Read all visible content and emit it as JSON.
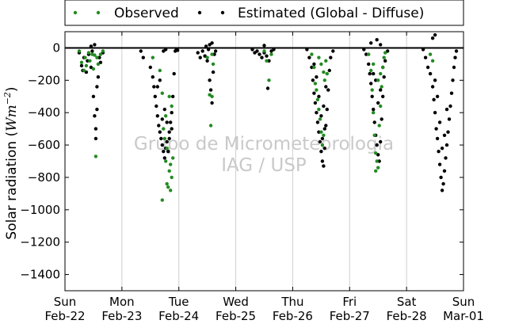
{
  "chart_data": {
    "type": "scatter",
    "ylabel_main": "Solar radiation (",
    "ylabel_unit_italic": "Wm",
    "ylabel_exponent": "−2",
    "ylabel_close": ")",
    "ylim": [
      -1500,
      100
    ],
    "yticks": [
      0,
      -200,
      -400,
      -600,
      -800,
      -1000,
      -1200,
      -1400
    ],
    "yticklabels": [
      "0",
      "−200",
      "−400",
      "−600",
      "−800",
      "−1000",
      "−1200",
      "−1400"
    ],
    "x_days": [
      "2015-02-22",
      "2015-02-23",
      "2015-02-24",
      "2015-02-25",
      "2015-02-26",
      "2015-02-27",
      "2015-02-28",
      "2015-03-01"
    ],
    "xtick_line1": [
      "Sun",
      "Mon",
      "Tue",
      "Wed",
      "Thu",
      "Fri",
      "Sat",
      "Sun"
    ],
    "xtick_line2": [
      "Feb-22",
      "Feb-23",
      "Feb-24",
      "Feb-25",
      "Feb-26",
      "Feb-27",
      "Feb-28",
      "Mar-01"
    ],
    "vertical_grid": true,
    "legend_position": "top-center, outside plot",
    "watermark": [
      "Grupo de Micrometeorologia",
      "IAG / USP"
    ],
    "series": [
      {
        "name": "Observed",
        "color": "#228b22",
        "points": [
          [
            "2015-02-22 06:00",
            -20
          ],
          [
            "2015-02-22 07:00",
            -90
          ],
          [
            "2015-02-22 08:00",
            -140
          ],
          [
            "2015-02-22 08:30",
            -60
          ],
          [
            "2015-02-22 09:00",
            -110
          ],
          [
            "2015-02-22 10:00",
            -30
          ],
          [
            "2015-02-22 10:30",
            -80
          ],
          [
            "2015-02-22 11:30",
            -40
          ],
          [
            "2015-02-22 12:00",
            -130
          ],
          [
            "2015-02-22 12:30",
            -45
          ],
          [
            "2015-02-22 13:00",
            -670
          ],
          [
            "2015-02-22 13:30",
            -60
          ],
          [
            "2015-02-22 14:00",
            -100
          ],
          [
            "2015-02-22 15:00",
            -40
          ],
          [
            "2015-02-22 16:00",
            -20
          ],
          [
            "2015-02-23 13:00",
            -60
          ],
          [
            "2015-02-23 16:00",
            -140
          ],
          [
            "2015-02-23 17:00",
            -280
          ],
          [
            "2015-02-23 17:30",
            -500
          ],
          [
            "2015-02-23 18:00",
            -560
          ],
          [
            "2015-02-23 18:30",
            -700
          ],
          [
            "2015-02-23 19:00",
            -840
          ],
          [
            "2015-02-23 19:30",
            -860
          ],
          [
            "2015-02-23 20:00",
            -760
          ],
          [
            "2015-02-23 20:30",
            -880
          ],
          [
            "2015-02-23 21:00",
            -800
          ],
          [
            "2015-02-23 21:30",
            -680
          ],
          [
            "2015-02-23 17:00",
            -940
          ],
          [
            "2015-02-23 18:30",
            -420
          ],
          [
            "2015-02-23 20:00",
            -300
          ],
          [
            "2015-02-23 21:00",
            -360
          ],
          [
            "2015-02-23 19:00",
            -620
          ],
          [
            "2015-02-23 20:30",
            -720
          ],
          [
            "2015-02-24 12:00",
            -60
          ],
          [
            "2015-02-24 13:00",
            -290
          ],
          [
            "2015-02-24 13:30",
            -480
          ],
          [
            "2015-02-24 14:00",
            -300
          ],
          [
            "2015-02-24 14:30",
            -100
          ],
          [
            "2015-02-24 14:00",
            -40
          ],
          [
            "2015-02-25 12:00",
            -20
          ],
          [
            "2015-02-25 13:00",
            -80
          ],
          [
            "2015-02-25 14:00",
            -200
          ],
          [
            "2015-02-25 15:00",
            -40
          ],
          [
            "2015-02-26 08:00",
            -40
          ],
          [
            "2015-02-26 09:00",
            -120
          ],
          [
            "2015-02-26 09:30",
            -220
          ],
          [
            "2015-02-26 10:00",
            -260
          ],
          [
            "2015-02-26 10:30",
            -320
          ],
          [
            "2015-02-26 11:00",
            -380
          ],
          [
            "2015-02-26 11:30",
            -440
          ],
          [
            "2015-02-26 12:00",
            -520
          ],
          [
            "2015-02-26 12:30",
            -600
          ],
          [
            "2015-02-26 13:00",
            -540
          ],
          [
            "2015-02-26 13:30",
            -200
          ],
          [
            "2015-02-26 14:00",
            -80
          ],
          [
            "2015-02-26 12:00",
            -100
          ],
          [
            "2015-02-26 13:00",
            -150
          ],
          [
            "2015-02-26 11:00",
            -60
          ],
          [
            "2015-02-26 14:30",
            -160
          ],
          [
            "2015-02-27 08:00",
            -40
          ],
          [
            "2015-02-27 09:00",
            -140
          ],
          [
            "2015-02-27 09:30",
            -260
          ],
          [
            "2015-02-27 10:00",
            -400
          ],
          [
            "2015-02-27 10:30",
            -540
          ],
          [
            "2015-02-27 11:00",
            -650
          ],
          [
            "2015-02-27 11:30",
            -700
          ],
          [
            "2015-02-27 12:00",
            -740
          ],
          [
            "2015-02-27 12:30",
            -480
          ],
          [
            "2015-02-27 13:00",
            -360
          ],
          [
            "2015-02-27 13:30",
            -240
          ],
          [
            "2015-02-27 14:00",
            -120
          ],
          [
            "2015-02-27 14:30",
            -60
          ],
          [
            "2015-02-27 10:00",
            -100
          ],
          [
            "2015-02-27 12:00",
            -200
          ],
          [
            "2015-02-27 13:00",
            -160
          ],
          [
            "2015-02-27 11:00",
            -760
          ],
          [
            "2015-02-27 15:00",
            -30
          ],
          [
            "2015-02-28 10:00",
            -40
          ],
          [
            "2015-02-28 11:00",
            -80
          ]
        ]
      },
      {
        "name": "Estimated (Global - Diffuse)",
        "color": "#000000",
        "points": [
          [
            "2015-02-22 06:00",
            -30
          ],
          [
            "2015-02-22 07:00",
            -110
          ],
          [
            "2015-02-22 07:30",
            -140
          ],
          [
            "2015-02-22 08:00",
            -60
          ],
          [
            "2015-02-22 09:00",
            -150
          ],
          [
            "2015-02-22 09:30",
            -80
          ],
          [
            "2015-02-22 10:00",
            -40
          ],
          [
            "2015-02-22 11:00",
            -120
          ],
          [
            "2015-02-22 11:30",
            -20
          ],
          [
            "2015-02-22 12:00",
            -300
          ],
          [
            "2015-02-22 12:30",
            -420
          ],
          [
            "2015-02-22 13:00",
            -500
          ],
          [
            "2015-02-22 13:00",
            -560
          ],
          [
            "2015-02-22 13:30",
            -380
          ],
          [
            "2015-02-22 13:30",
            -240
          ],
          [
            "2015-02-22 14:00",
            -180
          ],
          [
            "2015-02-22 14:30",
            -60
          ],
          [
            "2015-02-22 15:00",
            -90
          ],
          [
            "2015-02-22 16:00",
            -30
          ],
          [
            "2015-02-22 11:00",
            10
          ],
          [
            "2015-02-22 12:30",
            20
          ],
          [
            "2015-02-23 08:00",
            -20
          ],
          [
            "2015-02-23 09:00",
            -60
          ],
          [
            "2015-02-23 12:00",
            -120
          ],
          [
            "2015-02-23 13:00",
            -180
          ],
          [
            "2015-02-23 13:30",
            -240
          ],
          [
            "2015-02-23 14:00",
            -300
          ],
          [
            "2015-02-23 14:30",
            -360
          ],
          [
            "2015-02-23 15:00",
            -420
          ],
          [
            "2015-02-23 15:30",
            -480
          ],
          [
            "2015-02-23 16:00",
            -520
          ],
          [
            "2015-02-23 16:30",
            -560
          ],
          [
            "2015-02-23 17:00",
            -600
          ],
          [
            "2015-02-23 17:30",
            -640
          ],
          [
            "2015-02-23 18:00",
            -680
          ],
          [
            "2015-02-23 18:30",
            -620
          ],
          [
            "2015-02-23 19:00",
            -580
          ],
          [
            "2015-02-23 19:30",
            -640
          ],
          [
            "2015-02-23 20:00",
            -520
          ],
          [
            "2015-02-23 20:30",
            -460
          ],
          [
            "2015-02-23 21:00",
            -400
          ],
          [
            "2015-02-23 21:30",
            -300
          ],
          [
            "2015-02-23 22:00",
            -160
          ],
          [
            "2015-02-23 16:00",
            -200
          ],
          [
            "2015-02-23 15:00",
            -240
          ],
          [
            "2015-02-23 17:00",
            -440
          ],
          [
            "2015-02-23 18:00",
            -380
          ],
          [
            "2015-02-23 19:00",
            -460
          ],
          [
            "2015-02-23 20:00",
            -560
          ],
          [
            "2015-02-23 21:00",
            -500
          ],
          [
            "2015-02-23 22:30",
            -20
          ],
          [
            "2015-02-23 23:00",
            -10
          ],
          [
            "2015-02-23 23:30",
            -15
          ],
          [
            "2015-02-23 17:30",
            -20
          ],
          [
            "2015-02-23 18:30",
            -10
          ],
          [
            "2015-02-24 08:00",
            -30
          ],
          [
            "2015-02-24 09:00",
            -60
          ],
          [
            "2015-02-24 10:00",
            -20
          ],
          [
            "2015-02-24 11:00",
            -50
          ],
          [
            "2015-02-24 12:00",
            -80
          ],
          [
            "2015-02-24 12:30",
            -10
          ],
          [
            "2015-02-24 13:00",
            -200
          ],
          [
            "2015-02-24 13:30",
            -260
          ],
          [
            "2015-02-24 14:00",
            -340
          ],
          [
            "2015-02-24 14:30",
            -150
          ],
          [
            "2015-02-24 15:00",
            -40
          ],
          [
            "2015-02-24 15:30",
            -20
          ],
          [
            "2015-02-24 13:00",
            20
          ],
          [
            "2015-02-24 14:00",
            30
          ],
          [
            "2015-02-24 11:30",
            10
          ],
          [
            "2015-02-25 07:00",
            -10
          ],
          [
            "2015-02-25 08:00",
            -30
          ],
          [
            "2015-02-25 09:00",
            -20
          ],
          [
            "2015-02-25 10:00",
            -40
          ],
          [
            "2015-02-25 11:00",
            -60
          ],
          [
            "2015-02-25 12:00",
            -30
          ],
          [
            "2015-02-25 13:00",
            -50
          ],
          [
            "2015-02-25 13:30",
            -250
          ],
          [
            "2015-02-25 14:00",
            -80
          ],
          [
            "2015-02-25 15:00",
            -20
          ],
          [
            "2015-02-25 16:00",
            -10
          ],
          [
            "2015-02-25 12:00",
            15
          ],
          [
            "2015-02-26 06:00",
            -10
          ],
          [
            "2015-02-26 07:00",
            -60
          ],
          [
            "2015-02-26 08:00",
            -120
          ],
          [
            "2015-02-26 08:30",
            -200
          ],
          [
            "2015-02-26 09:00",
            -280
          ],
          [
            "2015-02-26 09:30",
            -340
          ],
          [
            "2015-02-26 10:00",
            -400
          ],
          [
            "2015-02-26 10:30",
            -460
          ],
          [
            "2015-02-26 11:00",
            -520
          ],
          [
            "2015-02-26 11:30",
            -580
          ],
          [
            "2015-02-26 12:00",
            -640
          ],
          [
            "2015-02-26 12:30",
            -700
          ],
          [
            "2015-02-26 13:00",
            -730
          ],
          [
            "2015-02-26 13:30",
            -620
          ],
          [
            "2015-02-26 14:00",
            -480
          ],
          [
            "2015-02-26 14:30",
            -380
          ],
          [
            "2015-02-26 15:00",
            -260
          ],
          [
            "2015-02-26 15:30",
            -140
          ],
          [
            "2015-02-26 16:00",
            -60
          ],
          [
            "2015-02-26 17:00",
            -20
          ],
          [
            "2015-02-26 10:00",
            -180
          ],
          [
            "2015-02-26 11:00",
            -300
          ],
          [
            "2015-02-26 12:00",
            -420
          ],
          [
            "2015-02-26 13:00",
            -360
          ],
          [
            "2015-02-26 14:00",
            -240
          ],
          [
            "2015-02-26 09:00",
            -100
          ],
          [
            "2015-02-26 12:30",
            -560
          ],
          [
            "2015-02-26 13:30",
            -500
          ],
          [
            "2015-02-27 06:00",
            -10
          ],
          [
            "2015-02-27 07:00",
            -40
          ],
          [
            "2015-02-27 08:00",
            -100
          ],
          [
            "2015-02-27 08:30",
            -160
          ],
          [
            "2015-02-27 09:00",
            -220
          ],
          [
            "2015-02-27 09:30",
            -300
          ],
          [
            "2015-02-27 10:00",
            -380
          ],
          [
            "2015-02-27 10:30",
            -460
          ],
          [
            "2015-02-27 11:00",
            -540
          ],
          [
            "2015-02-27 11:30",
            -600
          ],
          [
            "2015-02-27 12:00",
            -660
          ],
          [
            "2015-02-27 12:30",
            -700
          ],
          [
            "2015-02-27 13:00",
            -580
          ],
          [
            "2015-02-27 13:30",
            -440
          ],
          [
            "2015-02-27 14:00",
            -300
          ],
          [
            "2015-02-27 14:30",
            -180
          ],
          [
            "2015-02-27 15:00",
            -80
          ],
          [
            "2015-02-27 16:00",
            -20
          ],
          [
            "2015-02-27 11:00",
            -200
          ],
          [
            "2015-02-27 12:00",
            -340
          ],
          [
            "2015-02-27 13:00",
            -260
          ],
          [
            "2015-02-27 10:00",
            -160
          ],
          [
            "2015-02-27 14:00",
            -120
          ],
          [
            "2015-02-27 09:00",
            30
          ],
          [
            "2015-02-27 11:30",
            50
          ],
          [
            "2015-02-27 13:00",
            20
          ],
          [
            "2015-02-28 07:00",
            -10
          ],
          [
            "2015-02-28 08:00",
            -60
          ],
          [
            "2015-02-28 09:00",
            -120
          ],
          [
            "2015-02-28 10:00",
            -160
          ],
          [
            "2015-02-28 11:00",
            -240
          ],
          [
            "2015-02-28 11:30",
            -320
          ],
          [
            "2015-02-28 12:00",
            -400
          ],
          [
            "2015-02-28 12:30",
            -500
          ],
          [
            "2015-02-28 13:00",
            -560
          ],
          [
            "2015-02-28 13:30",
            -640
          ],
          [
            "2015-02-28 14:00",
            -720
          ],
          [
            "2015-02-28 14:30",
            -800
          ],
          [
            "2015-02-28 15:00",
            -880
          ],
          [
            "2015-02-28 15:30",
            -840
          ],
          [
            "2015-02-28 16:00",
            -760
          ],
          [
            "2015-02-28 16:30",
            -680
          ],
          [
            "2015-02-28 17:00",
            -600
          ],
          [
            "2015-02-28 17:30",
            -520
          ],
          [
            "2015-02-28 18:00",
            -440
          ],
          [
            "2015-02-28 18:30",
            -360
          ],
          [
            "2015-02-28 19:00",
            -280
          ],
          [
            "2015-02-28 19:30",
            -200
          ],
          [
            "2015-02-28 20:00",
            -120
          ],
          [
            "2015-02-28 20:30",
            -60
          ],
          [
            "2015-02-28 21:00",
            -20
          ],
          [
            "2015-02-28 13:00",
            -300
          ],
          [
            "2015-02-28 14:00",
            -460
          ],
          [
            "2015-02-28 15:00",
            -620
          ],
          [
            "2015-02-28 16:00",
            -540
          ],
          [
            "2015-02-28 17:00",
            -380
          ],
          [
            "2015-02-28 12:00",
            -200
          ],
          [
            "2015-02-28 11:00",
            60
          ],
          [
            "2015-02-28 12:00",
            80
          ]
        ]
      }
    ]
  }
}
